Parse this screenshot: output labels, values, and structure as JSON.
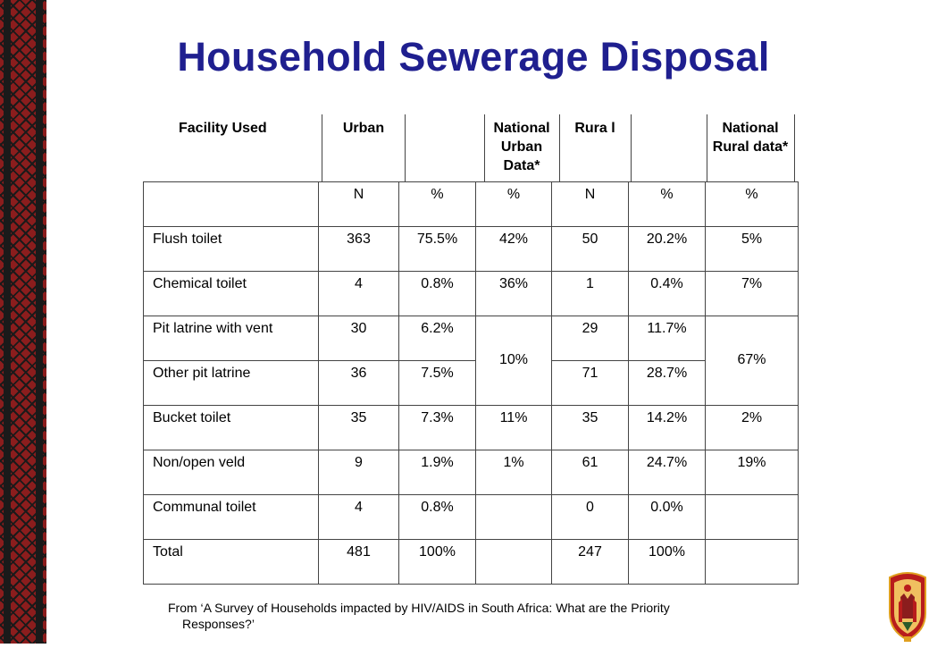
{
  "title": "Household Sewerage Disposal",
  "header": {
    "facility_used": "Facility Used",
    "urban": "Urban",
    "national_urban": "National Urban Data*",
    "rural": "Rura l",
    "national_rural": "National Rural data*"
  },
  "subheader": [
    "N",
    "%",
    "%",
    "N",
    "%",
    "%"
  ],
  "rows": [
    {
      "label": "Flush toilet",
      "urban_n": "363",
      "urban_pct": "75.5%",
      "nat_urban": "42%",
      "rural_n": "50",
      "rural_pct": "20.2%",
      "nat_rural": "5%"
    },
    {
      "label": "Chemical toilet",
      "urban_n": "4",
      "urban_pct": "0.8%",
      "nat_urban": "36%",
      "rural_n": "1",
      "rural_pct": "0.4%",
      "nat_rural": "7%"
    },
    {
      "label": "Pit latrine with vent",
      "urban_n": "30",
      "urban_pct": "6.2%",
      "nat_urban": "10%",
      "rural_n": "29",
      "rural_pct": "11.7%",
      "nat_rural": "67%"
    },
    {
      "label": "Other pit latrine",
      "urban_n": "36",
      "urban_pct": "7.5%",
      "rural_n": "71",
      "rural_pct": "28.7%"
    },
    {
      "label": "Bucket toilet",
      "urban_n": "35",
      "urban_pct": "7.3%",
      "nat_urban": "11%",
      "rural_n": "35",
      "rural_pct": "14.2%",
      "nat_rural": "2%"
    },
    {
      "label": "Non/open veld",
      "urban_n": "9",
      "urban_pct": "1.9%",
      "nat_urban": "1%",
      "rural_n": "61",
      "rural_pct": "24.7%",
      "nat_rural": "19%"
    },
    {
      "label": "Communal toilet",
      "urban_n": "4",
      "urban_pct": "0.8%",
      "nat_urban": "",
      "rural_n": "0",
      "rural_pct": "0.0%",
      "nat_rural": ""
    },
    {
      "label": "Total",
      "urban_n": "481",
      "urban_pct": "100%",
      "nat_urban": "",
      "rural_n": "247",
      "rural_pct": "100%",
      "nat_rural": ""
    }
  ],
  "source": {
    "line1": "From ‘A Survey of Households impacted by HIV/AIDS in South Africa: What are the Priority",
    "line2": "Responses?’"
  },
  "colors": {
    "title": "#1f1f8f",
    "border_red": "#8b1d1d",
    "border_black": "#1a1a1a"
  },
  "icons": {
    "logo": "coat-of-arms-logo",
    "border": "zigzag-pattern-border"
  }
}
